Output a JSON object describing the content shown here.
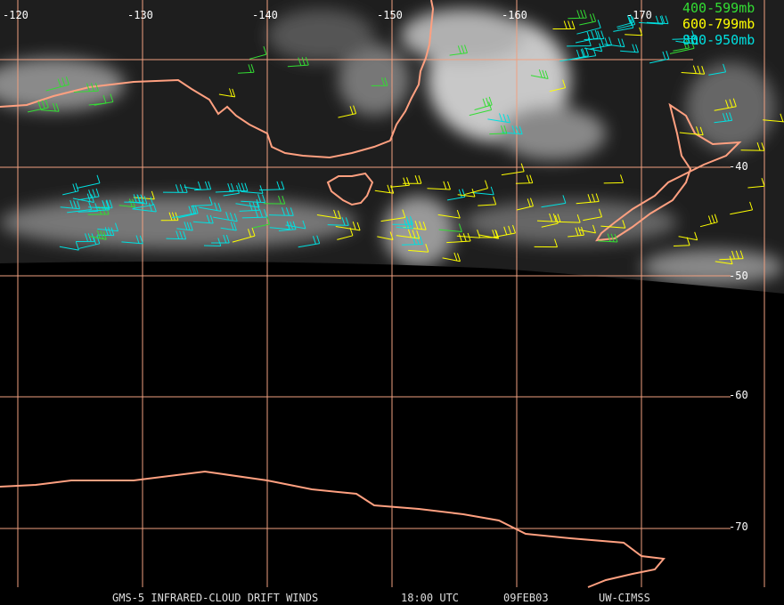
{
  "map": {
    "longitude_labels": [
      "-120",
      "-130",
      "-140",
      "-150",
      "-160",
      "-170"
    ],
    "latitude_labels": [
      "-40",
      "-50",
      "-60",
      "-70"
    ],
    "legend": [
      {
        "label": "400-599mb",
        "color": "#33dd33"
      },
      {
        "label": "600-799mb",
        "color": "#ffff00"
      },
      {
        "label": "800-950mb",
        "color": "#00e0e0"
      }
    ],
    "caption": {
      "product": "GMS-5 INFRARED-CLOUD DRIFT WINDS",
      "time": "18:00 UTC",
      "date": "09FEB03",
      "source": "UW-CIMSS"
    }
  }
}
